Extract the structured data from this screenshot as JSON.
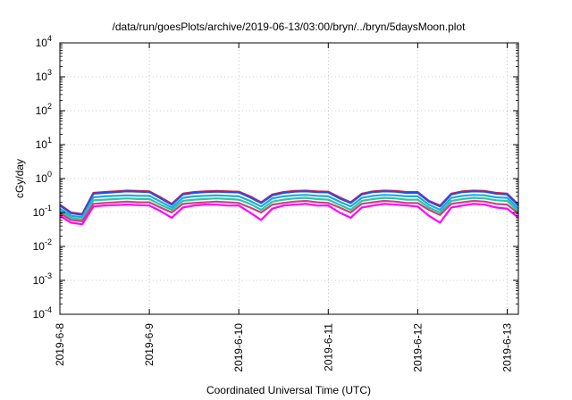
{
  "chart_data": {
    "type": "line",
    "title": "/data/run/goesPlots/archive/2019-06-13/03:00/bryn/../bryn/5daysMoon.plot",
    "xlabel": "Coordinated Universal Time (UTC)",
    "ylabel": "cGy/day",
    "yscale": "log",
    "ylim": [
      0.0001,
      10000
    ],
    "xlim": [
      "2019-06-08",
      "2019-06-13 03:00"
    ],
    "grid": true,
    "legend": "none",
    "y_ticks": [
      {
        "value": 0.0001,
        "mantissa": "10",
        "exp": "-4"
      },
      {
        "value": 0.001,
        "mantissa": "10",
        "exp": "-3"
      },
      {
        "value": 0.01,
        "mantissa": "10",
        "exp": "-2"
      },
      {
        "value": 0.1,
        "mantissa": "10",
        "exp": "-1"
      },
      {
        "value": 1,
        "mantissa": "10",
        "exp": "0"
      },
      {
        "value": 10,
        "mantissa": "10",
        "exp": "1"
      },
      {
        "value": 100,
        "mantissa": "10",
        "exp": "2"
      },
      {
        "value": 1000,
        "mantissa": "10",
        "exp": "3"
      },
      {
        "value": 10000,
        "mantissa": "10",
        "exp": "4"
      }
    ],
    "x_ticks": [
      {
        "value": "2019-06-08",
        "label": "2019-6-8"
      },
      {
        "value": "2019-06-09",
        "label": "2019-6-9"
      },
      {
        "value": "2019-06-10",
        "label": "2019-6-10"
      },
      {
        "value": "2019-06-11",
        "label": "2019-6-11"
      },
      {
        "value": "2019-06-12",
        "label": "2019-6-12"
      },
      {
        "value": "2019-06-13",
        "label": "2019-6-13"
      }
    ],
    "x": [
      "2019-06-08 00:00",
      "2019-06-08 03:00",
      "2019-06-08 06:00",
      "2019-06-08 09:00",
      "2019-06-08 12:00",
      "2019-06-08 15:00",
      "2019-06-08 18:00",
      "2019-06-08 21:00",
      "2019-06-09 00:00",
      "2019-06-09 03:00",
      "2019-06-09 06:00",
      "2019-06-09 09:00",
      "2019-06-09 12:00",
      "2019-06-09 15:00",
      "2019-06-09 18:00",
      "2019-06-09 21:00",
      "2019-06-10 00:00",
      "2019-06-10 03:00",
      "2019-06-10 06:00",
      "2019-06-10 09:00",
      "2019-06-10 12:00",
      "2019-06-10 15:00",
      "2019-06-10 18:00",
      "2019-06-10 21:00",
      "2019-06-11 00:00",
      "2019-06-11 03:00",
      "2019-06-11 06:00",
      "2019-06-11 09:00",
      "2019-06-11 12:00",
      "2019-06-11 15:00",
      "2019-06-11 18:00",
      "2019-06-11 21:00",
      "2019-06-12 00:00",
      "2019-06-12 03:00",
      "2019-06-12 06:00",
      "2019-06-12 09:00",
      "2019-06-12 12:00",
      "2019-06-12 15:00",
      "2019-06-12 18:00",
      "2019-06-12 21:00",
      "2019-06-13 00:00",
      "2019-06-13 03:00"
    ],
    "series": [
      {
        "color": "#e0203a",
        "values": [
          0.17,
          0.1,
          0.09,
          0.38,
          0.4,
          0.42,
          0.44,
          0.43,
          0.42,
          0.28,
          0.18,
          0.36,
          0.4,
          0.42,
          0.43,
          0.42,
          0.41,
          0.3,
          0.2,
          0.34,
          0.4,
          0.43,
          0.44,
          0.42,
          0.41,
          0.28,
          0.2,
          0.36,
          0.42,
          0.44,
          0.43,
          0.4,
          0.4,
          0.22,
          0.16,
          0.36,
          0.42,
          0.44,
          0.43,
          0.38,
          0.36,
          0.17
        ]
      },
      {
        "color": "#2c4be0",
        "values": [
          0.16,
          0.095,
          0.085,
          0.36,
          0.38,
          0.4,
          0.42,
          0.41,
          0.4,
          0.26,
          0.17,
          0.34,
          0.38,
          0.4,
          0.41,
          0.4,
          0.39,
          0.28,
          0.19,
          0.32,
          0.38,
          0.41,
          0.42,
          0.4,
          0.39,
          0.26,
          0.19,
          0.34,
          0.4,
          0.42,
          0.41,
          0.38,
          0.38,
          0.21,
          0.15,
          0.34,
          0.4,
          0.42,
          0.41,
          0.36,
          0.34,
          0.16
        ]
      },
      {
        "color": "#1fa8e0",
        "values": [
          0.13,
          0.08,
          0.072,
          0.28,
          0.3,
          0.31,
          0.32,
          0.31,
          0.31,
          0.21,
          0.14,
          0.27,
          0.3,
          0.31,
          0.32,
          0.31,
          0.3,
          0.22,
          0.15,
          0.26,
          0.3,
          0.32,
          0.33,
          0.31,
          0.3,
          0.21,
          0.15,
          0.27,
          0.31,
          0.33,
          0.32,
          0.3,
          0.3,
          0.17,
          0.12,
          0.27,
          0.31,
          0.33,
          0.32,
          0.28,
          0.27,
          0.13
        ]
      },
      {
        "color": "#28c8a0",
        "values": [
          0.11,
          0.07,
          0.062,
          0.23,
          0.24,
          0.25,
          0.26,
          0.25,
          0.25,
          0.17,
          0.12,
          0.22,
          0.24,
          0.25,
          0.26,
          0.25,
          0.24,
          0.18,
          0.12,
          0.21,
          0.24,
          0.26,
          0.27,
          0.25,
          0.24,
          0.17,
          0.12,
          0.22,
          0.25,
          0.27,
          0.26,
          0.24,
          0.24,
          0.14,
          0.1,
          0.22,
          0.25,
          0.27,
          0.26,
          0.23,
          0.22,
          0.11
        ]
      },
      {
        "color": "#d04080",
        "values": [
          0.095,
          0.06,
          0.055,
          0.18,
          0.19,
          0.2,
          0.21,
          0.2,
          0.2,
          0.14,
          0.1,
          0.18,
          0.19,
          0.2,
          0.21,
          0.2,
          0.19,
          0.14,
          0.1,
          0.17,
          0.19,
          0.21,
          0.22,
          0.2,
          0.19,
          0.14,
          0.1,
          0.18,
          0.2,
          0.22,
          0.21,
          0.19,
          0.19,
          0.12,
          0.085,
          0.18,
          0.2,
          0.22,
          0.21,
          0.18,
          0.17,
          0.095
        ]
      },
      {
        "color": "#ff00ff",
        "values": [
          0.08,
          0.05,
          0.045,
          0.15,
          0.16,
          0.165,
          0.17,
          0.165,
          0.16,
          0.11,
          0.07,
          0.14,
          0.16,
          0.17,
          0.17,
          0.16,
          0.16,
          0.1,
          0.06,
          0.13,
          0.16,
          0.17,
          0.18,
          0.16,
          0.16,
          0.1,
          0.07,
          0.14,
          0.16,
          0.18,
          0.17,
          0.16,
          0.15,
          0.08,
          0.05,
          0.14,
          0.16,
          0.18,
          0.17,
          0.14,
          0.13,
          0.07
        ]
      }
    ]
  }
}
